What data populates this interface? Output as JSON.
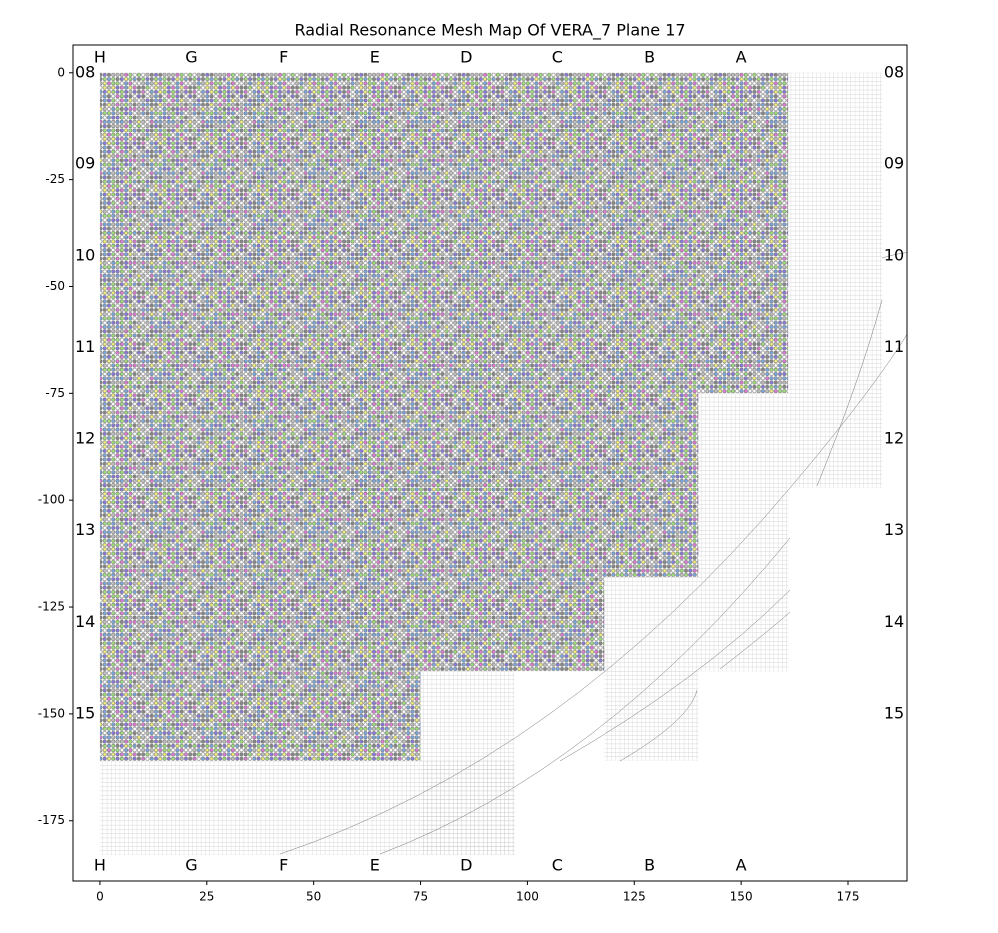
{
  "chart_data": {
    "type": "mesh_map",
    "title": "Radial Resonance Mesh Map Of VERA_7 Plane 17",
    "xlim": [
      -6.3,
      188.8
    ],
    "ylim": [
      -189.1,
      6.5
    ],
    "xticks": [
      0,
      25,
      50,
      75,
      100,
      125,
      150,
      175
    ],
    "yticks": [
      0,
      -25,
      -50,
      -75,
      -100,
      -125,
      -150,
      -175
    ],
    "column_labels": [
      {
        "label": "H",
        "x": 0
      },
      {
        "label": "G",
        "x": 21.4
      },
      {
        "label": "F",
        "x": 43
      },
      {
        "label": "E",
        "x": 64.3
      },
      {
        "label": "D",
        "x": 85.7
      },
      {
        "label": "C",
        "x": 107
      },
      {
        "label": "B",
        "x": 128.6
      },
      {
        "label": "A",
        "x": 150
      }
    ],
    "row_labels": [
      {
        "label": "08",
        "y": 0
      },
      {
        "label": "09",
        "y": -21.4
      },
      {
        "label": "10",
        "y": -42.9
      },
      {
        "label": "11",
        "y": -64.3
      },
      {
        "label": "12",
        "y": -85.7
      },
      {
        "label": "13",
        "y": -107.1
      },
      {
        "label": "14",
        "y": -128.6
      },
      {
        "label": "15",
        "y": -150
      }
    ],
    "dot_regions": [
      {
        "x": [
          0,
          161
        ],
        "y": [
          0,
          -75
        ]
      },
      {
        "x": [
          0,
          140
        ],
        "y": [
          -75,
          -118
        ]
      },
      {
        "x": [
          0,
          118
        ],
        "y": [
          -118,
          -140
        ]
      },
      {
        "x": [
          0,
          75
        ],
        "y": [
          -140,
          -161
        ]
      }
    ],
    "mesh_regions": [
      {
        "x": [
          161,
          183
        ],
        "y": [
          0,
          -97
        ]
      },
      {
        "x": [
          140,
          161
        ],
        "y": [
          -75,
          -140
        ]
      },
      {
        "x": [
          118,
          140
        ],
        "y": [
          -118,
          -161
        ]
      },
      {
        "x": [
          75,
          97
        ],
        "y": [
          -140,
          -183
        ]
      },
      {
        "x": [
          0,
          97
        ],
        "y": [
          -161,
          -183
        ]
      }
    ],
    "marker_colors": [
      "#888888",
      "#ffffff",
      "#9ee07a",
      "#e07ad8",
      "#8a7ae0",
      "#7aa8e0",
      "#f2f07a",
      "#c0c0c0"
    ]
  }
}
